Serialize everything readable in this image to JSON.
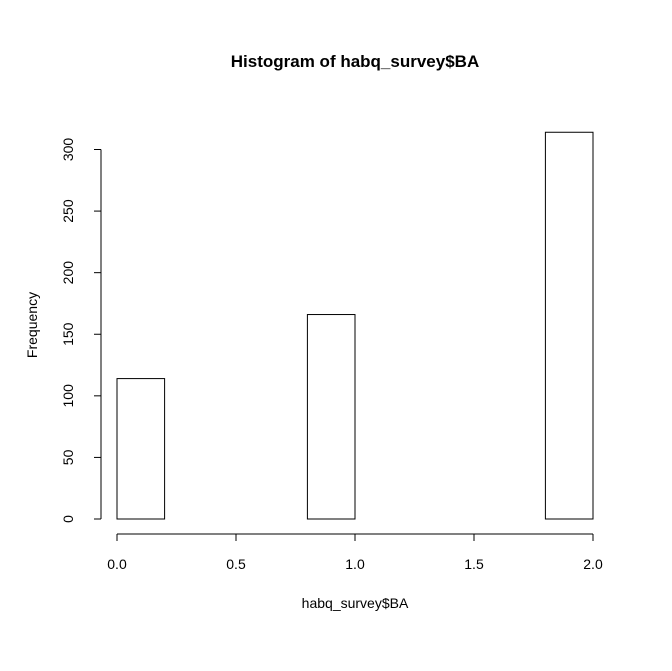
{
  "chart_data": {
    "type": "bar",
    "title": "Histogram of habq_survey$BA",
    "xlabel": "habq_survey$BA",
    "ylabel": "Frequency",
    "bins": [
      {
        "x0": 0.0,
        "x1": 0.2,
        "count": 114
      },
      {
        "x0": 0.2,
        "x1": 0.4,
        "count": 0
      },
      {
        "x0": 0.4,
        "x1": 0.6,
        "count": 0
      },
      {
        "x0": 0.6,
        "x1": 0.8,
        "count": 0
      },
      {
        "x0": 0.8,
        "x1": 1.0,
        "count": 166
      },
      {
        "x0": 1.0,
        "x1": 1.2,
        "count": 0
      },
      {
        "x0": 1.2,
        "x1": 1.4,
        "count": 0
      },
      {
        "x0": 1.4,
        "x1": 1.6,
        "count": 0
      },
      {
        "x0": 1.6,
        "x1": 1.8,
        "count": 0
      },
      {
        "x0": 1.8,
        "x1": 2.0,
        "count": 314
      }
    ],
    "xlim": [
      0,
      2
    ],
    "ylim": [
      0,
      314
    ],
    "x_ticks": [
      0.0,
      0.5,
      1.0,
      1.5,
      2.0
    ],
    "x_tick_labels": [
      "0.0",
      "0.5",
      "1.0",
      "1.5",
      "2.0"
    ],
    "y_ticks": [
      0,
      50,
      100,
      150,
      200,
      250,
      300
    ],
    "y_tick_labels": [
      "0",
      "50",
      "100",
      "150",
      "200",
      "250",
      "300"
    ],
    "grid": false,
    "colors": {
      "bar_fill": "#ffffff",
      "bar_stroke": "#000000"
    }
  }
}
